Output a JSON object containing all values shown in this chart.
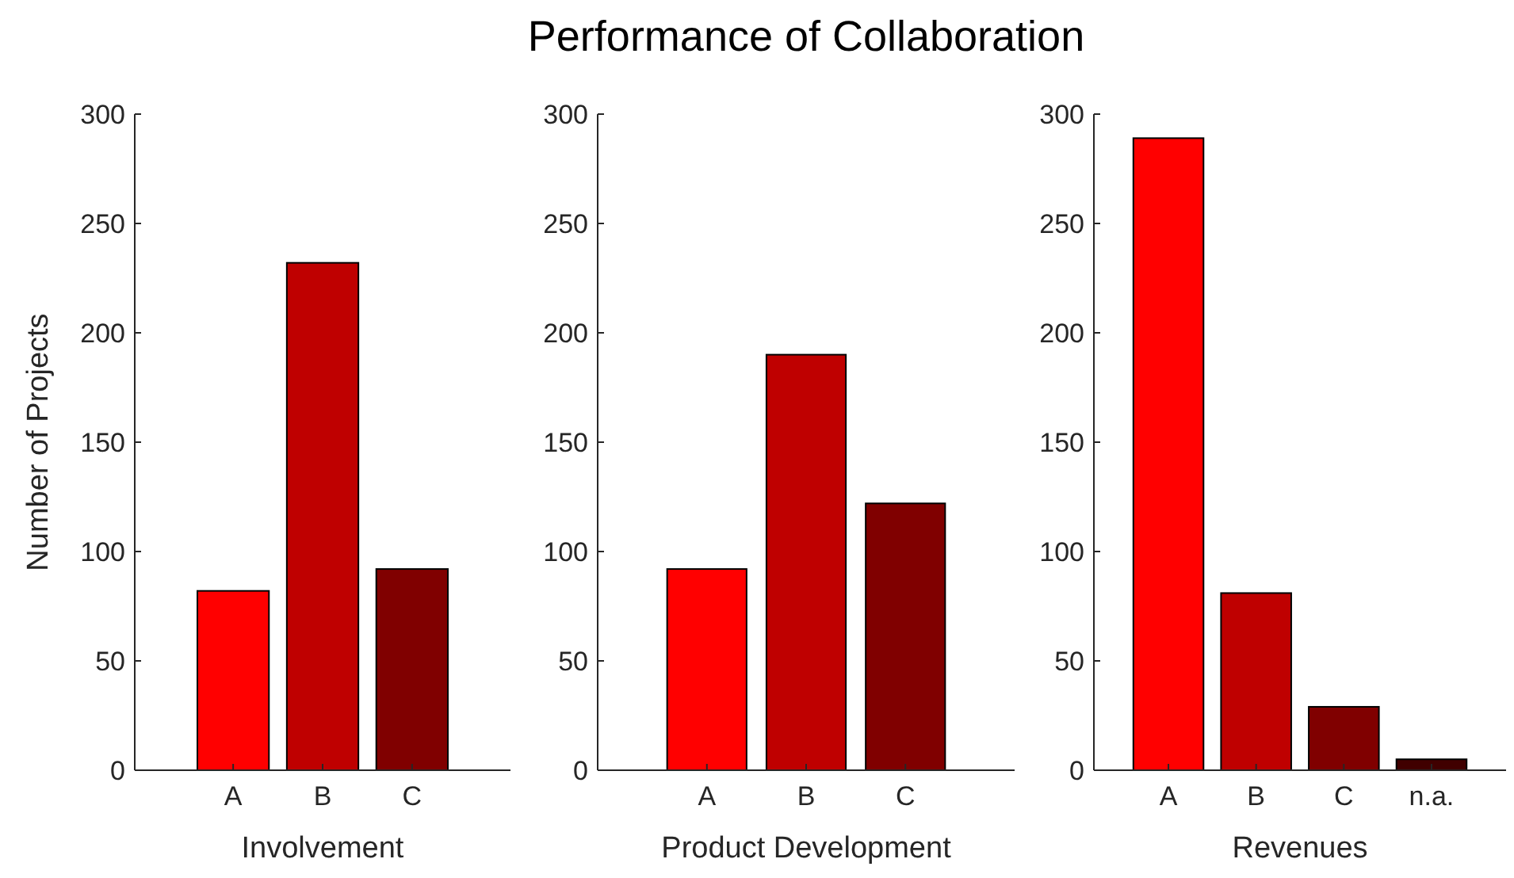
{
  "chart_data": [
    {
      "type": "bar",
      "categories": [
        "A",
        "B",
        "C"
      ],
      "values": [
        82,
        232,
        92
      ],
      "colors": [
        "#ff0000",
        "#bf0000",
        "#800000"
      ],
      "xlabel": "Involvement",
      "ylabel": "Number of Projects",
      "ylim": [
        0,
        300
      ],
      "yticks": [
        0,
        50,
        100,
        150,
        200,
        250,
        300
      ],
      "grid": false
    },
    {
      "type": "bar",
      "title": "Performance of Collaboration",
      "categories": [
        "A",
        "B",
        "C"
      ],
      "values": [
        92,
        190,
        122
      ],
      "colors": [
        "#ff0000",
        "#bf0000",
        "#800000"
      ],
      "xlabel": "Product Development",
      "ylim": [
        0,
        300
      ],
      "yticks": [
        0,
        50,
        100,
        150,
        200,
        250,
        300
      ],
      "grid": false
    },
    {
      "type": "bar",
      "categories": [
        "A",
        "B",
        "C",
        "n.a."
      ],
      "values": [
        289,
        81,
        29,
        5
      ],
      "colors": [
        "#ff0000",
        "#bf0000",
        "#800000",
        "#400000"
      ],
      "xlabel": "Revenues",
      "ylim": [
        0,
        300
      ],
      "yticks": [
        0,
        50,
        100,
        150,
        200,
        250,
        300
      ],
      "grid": false
    }
  ]
}
